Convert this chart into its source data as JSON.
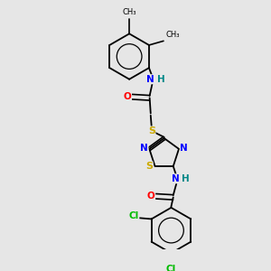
{
  "background_color": "#e6e6e6",
  "bond_color": "#000000",
  "atom_colors": {
    "N": "#0000ff",
    "O": "#ff0000",
    "S": "#ccaa00",
    "Cl": "#00bb00",
    "H": "#008888"
  },
  "figsize": [
    3.0,
    3.0
  ],
  "dpi": 100
}
